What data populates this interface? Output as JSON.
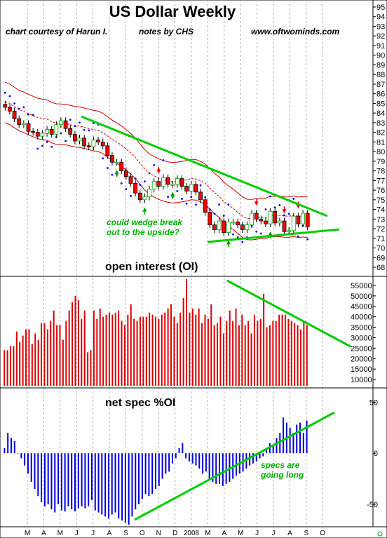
{
  "title": "US Dollar Weekly",
  "credits": {
    "courtesy": "chart courtesy of Harun I.",
    "notes": "notes by  CHS",
    "site": "www.oftwominds.com"
  },
  "chart_data": [
    {
      "type": "candlestick",
      "panel": "price",
      "ylim": [
        68,
        95
      ],
      "yticks": [
        68,
        69,
        70,
        71,
        72,
        73,
        74,
        75,
        76,
        77,
        78,
        79,
        80,
        81,
        82,
        83,
        84,
        85,
        86,
        87,
        88,
        89,
        90,
        91,
        92,
        93,
        94,
        95
      ],
      "close": [
        84.6,
        84.2,
        83.4,
        82.8,
        82.9,
        82.1,
        82.0,
        81.6,
        81.9,
        82.3,
        81.8,
        82.8,
        83.2,
        82.4,
        81.8,
        81.1,
        81.4,
        80.6,
        80.5,
        81.2,
        81.0,
        80.6,
        79.6,
        78.9,
        78.9,
        78.0,
        77.4,
        76.7,
        75.7,
        75.0,
        75.3,
        76.1,
        76.9,
        76.4,
        77.3,
        76.6,
        76.6,
        77.2,
        76.4,
        75.9,
        76.6,
        75.8,
        75.0,
        73.7,
        72.4,
        71.9,
        72.8,
        71.6,
        72.7,
        72.7,
        72.4,
        71.9,
        72.4,
        73.6,
        73.0,
        72.8,
        72.5,
        73.8,
        72.6,
        72.8,
        71.7,
        71.8,
        73.3,
        72.5,
        73.6,
        72.2
      ],
      "annotation": "could wedge break out to the upside?"
    },
    {
      "type": "bar",
      "panel": "open interest",
      "title": "open interest (OI)",
      "ylim": [
        7000,
        58000
      ],
      "yticks": [
        10000,
        15000,
        20000,
        25000,
        30000,
        35000,
        40000,
        45000,
        50000,
        55000
      ],
      "values": [
        24000,
        24000,
        26000,
        26000,
        33000,
        28000,
        31000,
        34000,
        34000,
        27000,
        32000,
        29000,
        37000,
        37000,
        34000,
        38000,
        43000,
        36000,
        36000,
        29000,
        38000,
        43000,
        47000,
        50000,
        48000,
        39000,
        43000,
        23000,
        24000,
        43000,
        39000,
        44000,
        40000,
        41000,
        42000,
        41000,
        42000,
        43000,
        38000,
        36000,
        41000,
        46000,
        39000,
        38000,
        40000,
        40000,
        40000,
        42000,
        41000,
        40000,
        39000,
        41000,
        42000,
        44000,
        46000,
        40000,
        37000,
        42000,
        49000,
        58000,
        42000,
        44000,
        41000,
        44000,
        37000,
        41000,
        39000,
        46000,
        36000,
        37000,
        40000,
        32000,
        38000,
        43000,
        38000,
        44000,
        36000,
        41000,
        36000,
        38000,
        32000,
        41000,
        38000,
        39000,
        51000,
        35000,
        36000,
        38000,
        38000,
        41000,
        41000,
        41000,
        39000,
        38000,
        37000,
        36000,
        34000,
        38000,
        36000
      ]
    },
    {
      "type": "bar",
      "panel": "net spec",
      "title": "net spec %OI",
      "ylim": [
        -70,
        62
      ],
      "yticks": [
        -50,
        0,
        50
      ],
      "values": [
        5,
        20,
        15,
        12,
        0,
        -5,
        -12,
        -20,
        -28,
        -35,
        -42,
        -48,
        -52,
        -50,
        -55,
        -58,
        -50,
        -56,
        -57,
        -52,
        -55,
        -57,
        -54,
        -52,
        -54,
        -52,
        -46,
        -56,
        -58,
        -60,
        -62,
        -64,
        -60,
        -58,
        -64,
        -66,
        -68,
        -70,
        -62,
        -55,
        -50,
        -45,
        -40,
        -42,
        -40,
        -35,
        -32,
        -25,
        -20,
        -18,
        -10,
        -5,
        5,
        10,
        -5,
        -8,
        -10,
        -12,
        -15,
        -20,
        -18,
        -25,
        -28,
        -30,
        -30,
        -32,
        -30,
        -28,
        -25,
        -22,
        -20,
        -18,
        -15,
        -12,
        -10,
        -8,
        -5,
        -3,
        5,
        10,
        8,
        15,
        20,
        35,
        30,
        25,
        20,
        28,
        30,
        20,
        32
      ],
      "annotation": "specs are going long"
    }
  ],
  "x_axis": {
    "labels": [
      "M",
      "A",
      "M",
      "J",
      "J",
      "A",
      "S",
      "O",
      "N",
      "D",
      "2008",
      "M",
      "A",
      "M",
      "J",
      "J",
      "A",
      "S",
      "O"
    ]
  },
  "colors": {
    "bull_candle": "#00a000",
    "bear_candle": "#ff0000",
    "bollinger": "#cc0000",
    "trendline": "#00cc00",
    "oi_bar": "#dd0000",
    "netspec_bar": "#0000dd",
    "psar_dot": "#0000ff",
    "gridline": "#b0b0b0"
  }
}
